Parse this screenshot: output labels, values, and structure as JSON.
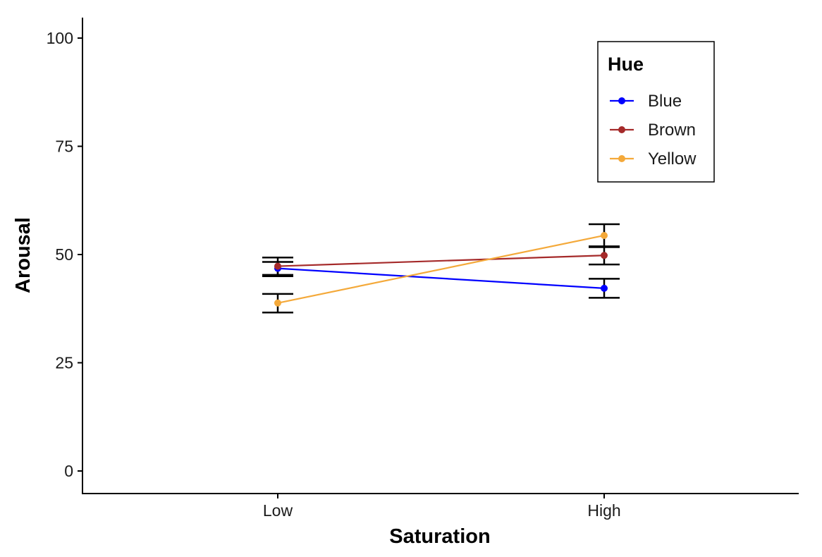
{
  "chart_data": {
    "type": "line",
    "xlabel": "Saturation",
    "ylabel": "Arousal",
    "categories": [
      "Low",
      "High"
    ],
    "ylim": [
      0,
      100
    ],
    "yticks": [
      0,
      25,
      50,
      75,
      100
    ],
    "grid": false,
    "legend": {
      "title": "Hue",
      "position": "top-right"
    },
    "series": [
      {
        "name": "Blue",
        "color": "#0000ff",
        "values": [
          46.8,
          42.2
        ],
        "error": [
          [
            45.3,
            48.3
          ],
          [
            40.0,
            44.4
          ]
        ]
      },
      {
        "name": "Brown",
        "color": "#a52a2a",
        "values": [
          47.3,
          49.8
        ],
        "error": [
          [
            45.0,
            49.3
          ],
          [
            47.7,
            51.9
          ]
        ]
      },
      {
        "name": "Yellow",
        "color": "#f4a93a",
        "values": [
          38.8,
          54.4
        ],
        "error": [
          [
            36.6,
            40.9
          ],
          [
            51.7,
            57.0
          ]
        ]
      }
    ]
  }
}
